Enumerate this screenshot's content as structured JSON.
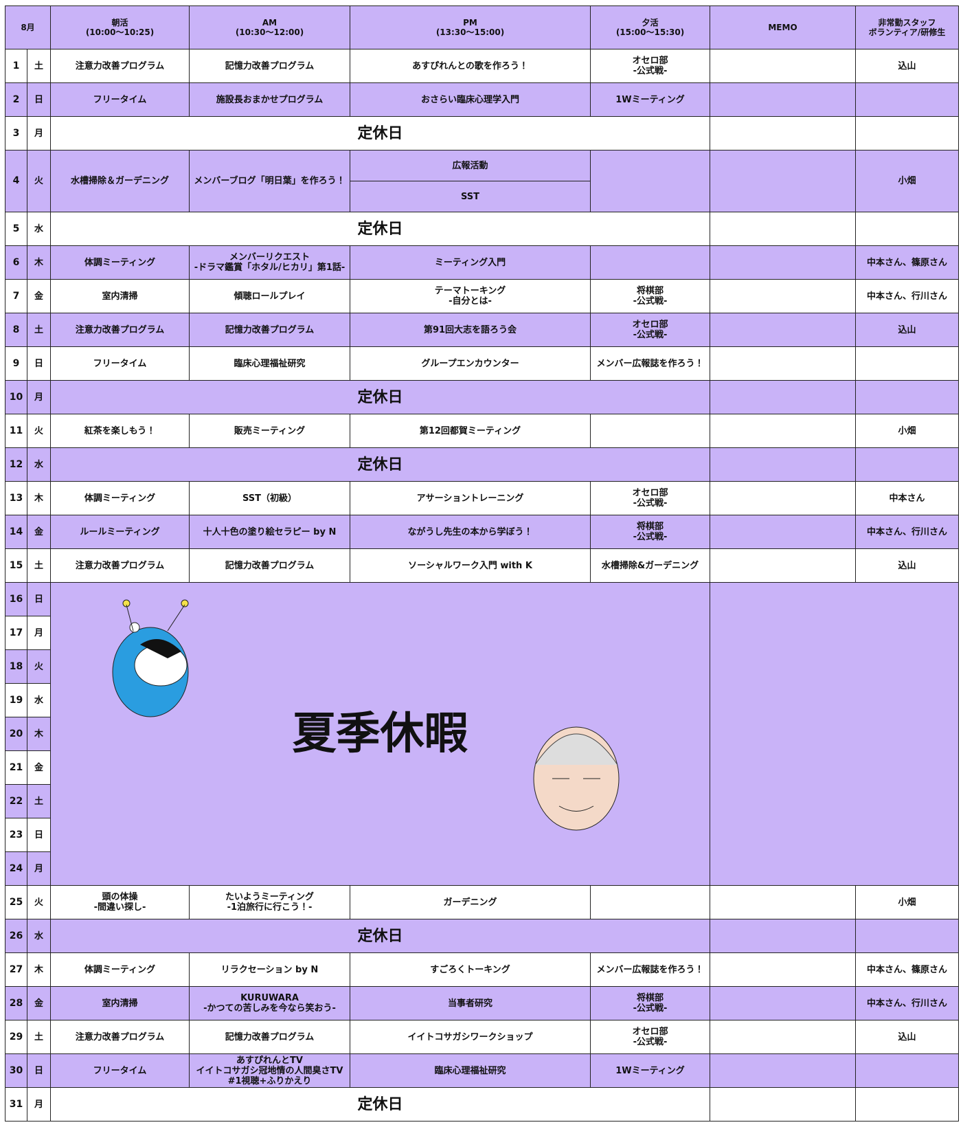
{
  "header": {
    "month": "8月",
    "columns": [
      [
        "朝活",
        "(10:00〜10:25)"
      ],
      [
        "AM",
        "(10:30〜12:00)"
      ],
      [
        "PM",
        "(13:30〜15:00)"
      ],
      [
        "夕活",
        "(15:00〜15:30)"
      ],
      [
        "MEMO"
      ],
      [
        "非常勤スタッフ",
        "ボランティア/研修生"
      ]
    ]
  },
  "summer_break": "夏季休暇",
  "rows": [
    {
      "day": 1,
      "weekday": "土",
      "morning": [
        "注意力改善プログラム"
      ],
      "am": [
        "記憶力改善プログラム"
      ],
      "pm": [
        "あすぴれんとの歌を作ろう！"
      ],
      "evening": [
        "オセロ部",
        "-公式戦-"
      ],
      "staff": [
        "込山"
      ]
    },
    {
      "day": 2,
      "weekday": "日",
      "morning": [
        "フリータイム"
      ],
      "am": [
        "施設長おまかせプログラム"
      ],
      "pm": [
        "おさらい臨床心理学入門"
      ],
      "evening": [
        "1Wミーティング"
      ]
    },
    {
      "day": 3,
      "weekday": "月",
      "closed": "定休日"
    },
    {
      "day": 4,
      "weekday": "火",
      "morning": [
        "水槽掃除＆ガーデニング"
      ],
      "am": [
        "メンバーブログ「明日葉」を作ろう！"
      ],
      "pm_parts": [
        [
          "広報活動"
        ],
        [
          "SST"
        ]
      ],
      "staff": [
        "小畑"
      ]
    },
    {
      "day": 5,
      "weekday": "水",
      "closed": "定休日"
    },
    {
      "day": 6,
      "weekday": "木",
      "morning": [
        "体調ミーティング"
      ],
      "am": [
        "メンバーリクエスト",
        "-ドラマ鑑賞「ホタル/ヒカリ」第1話-"
      ],
      "pm": [
        "ミーティング入門"
      ],
      "staff": [
        "中本さん、篠原さん"
      ]
    },
    {
      "day": 7,
      "weekday": "金",
      "morning": [
        "室内清掃"
      ],
      "am": [
        "傾聴ロールプレイ"
      ],
      "pm": [
        "テーマトーキング",
        "-自分とは-"
      ],
      "evening": [
        "将棋部",
        "-公式戦-"
      ],
      "staff": [
        "中本さん、行川さん"
      ]
    },
    {
      "day": 8,
      "weekday": "土",
      "morning": [
        "注意力改善プログラム"
      ],
      "am": [
        "記憶力改善プログラム"
      ],
      "pm": [
        "第91回大志を語ろう会"
      ],
      "evening": [
        "オセロ部",
        "-公式戦-"
      ],
      "staff": [
        "込山"
      ]
    },
    {
      "day": 9,
      "weekday": "日",
      "morning": [
        "フリータイム"
      ],
      "am": [
        "臨床心理福祉研究"
      ],
      "pm": [
        "グループエンカウンター"
      ],
      "evening": [
        "メンバー広報誌を作ろう！"
      ]
    },
    {
      "day": 10,
      "weekday": "月",
      "closed": "定休日"
    },
    {
      "day": 11,
      "weekday": "火",
      "morning": [
        "紅茶を楽しもう！"
      ],
      "am": [
        "販売ミーティング"
      ],
      "pm": [
        "第12回都賀ミーティング"
      ],
      "staff": [
        "小畑"
      ]
    },
    {
      "day": 12,
      "weekday": "水",
      "closed": "定休日"
    },
    {
      "day": 13,
      "weekday": "木",
      "morning": [
        "体調ミーティング"
      ],
      "am": [
        "SST（初級）"
      ],
      "pm": [
        "アサーショントレーニング"
      ],
      "evening": [
        "オセロ部",
        "-公式戦-"
      ],
      "staff": [
        "中本さん"
      ]
    },
    {
      "day": 14,
      "weekday": "金",
      "morning": [
        "ルールミーティング"
      ],
      "am": [
        "十人十色の塗り絵セラピー by N"
      ],
      "pm": [
        "ながうし先生の本から学ぼう！"
      ],
      "evening": [
        "将棋部",
        "-公式戦-"
      ],
      "staff": [
        "中本さん、行川さん"
      ]
    },
    {
      "day": 15,
      "weekday": "土",
      "morning": [
        "注意力改善プログラム"
      ],
      "am": [
        "記憶力改善プログラム"
      ],
      "pm": [
        "ソーシャルワーク入門 with K"
      ],
      "evening": [
        "水槽掃除&ガーデニング"
      ],
      "staff": [
        "込山"
      ]
    },
    {
      "day": 16,
      "weekday": "日"
    },
    {
      "day": 17,
      "weekday": "月"
    },
    {
      "day": 18,
      "weekday": "火"
    },
    {
      "day": 19,
      "weekday": "水"
    },
    {
      "day": 20,
      "weekday": "木"
    },
    {
      "day": 21,
      "weekday": "金"
    },
    {
      "day": 22,
      "weekday": "土"
    },
    {
      "day": 23,
      "weekday": "日"
    },
    {
      "day": 24,
      "weekday": "月"
    },
    {
      "day": 25,
      "weekday": "火",
      "morning": [
        "頭の体操",
        "-間違い探し-"
      ],
      "am": [
        "たいようミーティング",
        "-1泊旅行に行こう！-"
      ],
      "pm": [
        "ガーデニング"
      ],
      "staff": [
        "小畑"
      ]
    },
    {
      "day": 26,
      "weekday": "水",
      "closed": "定休日"
    },
    {
      "day": 27,
      "weekday": "木",
      "morning": [
        "体調ミーティング"
      ],
      "am": [
        "リラクセーション by N"
      ],
      "pm": [
        "すごろくトーキング"
      ],
      "evening": [
        "メンバー広報誌を作ろう！"
      ],
      "staff": [
        "中本さん、篠原さん"
      ]
    },
    {
      "day": 28,
      "weekday": "金",
      "morning": [
        "室内清掃"
      ],
      "am": [
        "KURUWARA",
        "-かつての苦しみを今なら笑おう-"
      ],
      "pm": [
        "当事者研究"
      ],
      "evening": [
        "将棋部",
        "-公式戦-"
      ],
      "staff": [
        "中本さん、行川さん"
      ]
    },
    {
      "day": 29,
      "weekday": "土",
      "morning": [
        "注意力改善プログラム"
      ],
      "am": [
        "記憶力改善プログラム"
      ],
      "pm": [
        "イイトコサガシワークショップ"
      ],
      "evening": [
        "オセロ部",
        "-公式戦-"
      ],
      "staff": [
        "込山"
      ]
    },
    {
      "day": 30,
      "weekday": "日",
      "morning": [
        "フリータイム"
      ],
      "am": [
        "あすぴれんとTV",
        "イイトコサガシ冠地情の人間臭さTV",
        "#1視聴+ふりかえり"
      ],
      "pm": [
        "臨床心理福祉研究"
      ],
      "evening": [
        "1Wミーティング"
      ]
    },
    {
      "day": 31,
      "weekday": "月",
      "closed": "定休日"
    }
  ]
}
